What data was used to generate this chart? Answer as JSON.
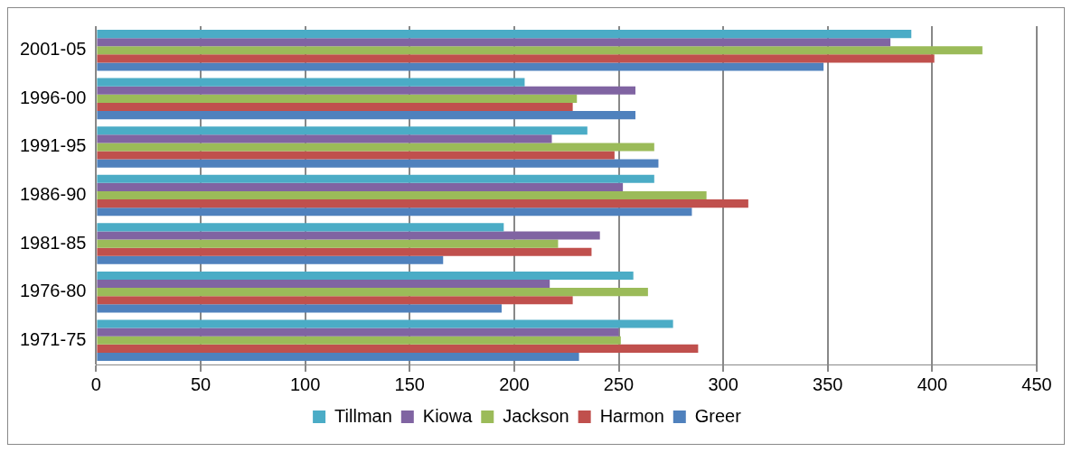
{
  "chart_data": {
    "type": "bar",
    "orientation": "horizontal",
    "categories": [
      "2001-05",
      "1996-00",
      "1991-95",
      "1986-90",
      "1981-85",
      "1976-80",
      "1971-75"
    ],
    "series": [
      {
        "name": "Tillman",
        "color": "#4bacc6",
        "values": [
          390,
          205,
          235,
          267,
          195,
          257,
          276
        ]
      },
      {
        "name": "Kiowa",
        "color": "#8064a2",
        "values": [
          380,
          258,
          218,
          252,
          241,
          217,
          250
        ]
      },
      {
        "name": "Jackson",
        "color": "#9bbb59",
        "values": [
          424,
          230,
          267,
          292,
          221,
          264,
          251
        ]
      },
      {
        "name": "Harmon",
        "color": "#c0504d",
        "values": [
          401,
          228,
          248,
          312,
          237,
          228,
          288
        ]
      },
      {
        "name": "Greer",
        "color": "#4f81bd",
        "values": [
          348,
          258,
          269,
          285,
          166,
          194,
          231
        ]
      }
    ],
    "xlim": [
      0,
      450
    ],
    "xticks": [
      0,
      50,
      100,
      150,
      200,
      250,
      300,
      350,
      400,
      450
    ],
    "grid": "x",
    "legend": "bottom"
  }
}
